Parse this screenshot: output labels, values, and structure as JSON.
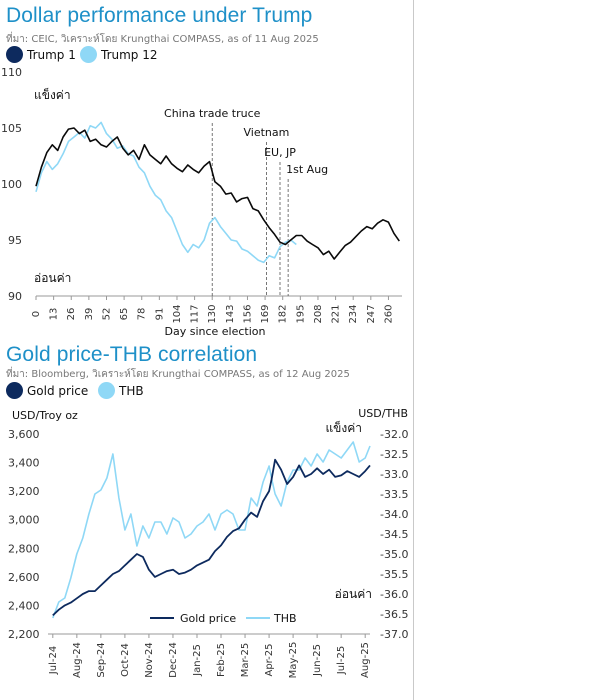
{
  "chart_data": [
    {
      "type": "line",
      "title": "Dollar performance under Trump",
      "source": "ที่มา: CEIC, วิเคราะห์โดย Krungthai COMPASS, as of 11 Aug 2025",
      "xlabel": "Day since election",
      "ylabel": "",
      "xlim": [
        0,
        270
      ],
      "ylim": [
        90,
        110
      ],
      "x_ticks": [
        0,
        13,
        26,
        39,
        52,
        65,
        78,
        91,
        104,
        117,
        130,
        143,
        156,
        169,
        182,
        195,
        208,
        221,
        234,
        247,
        260
      ],
      "y_ticks": [
        90,
        95,
        100,
        105,
        110
      ],
      "annotations": [
        {
          "label": "แข็งค่า",
          "position": "top-left"
        },
        {
          "label": "อ่อนค่า",
          "position": "bottom-left"
        }
      ],
      "events": [
        {
          "label": "China trade truce",
          "x": 130
        },
        {
          "label": "Vietnam",
          "x": 170
        },
        {
          "label": "EU, JP",
          "x": 180
        },
        {
          "label": "1st Aug",
          "x": 186
        }
      ],
      "colors": {
        "trump1": "#0a0a0a",
        "trump12": "#8fd8f6",
        "legend1": "#0d2a5e",
        "legend2": "#8fd8f6"
      },
      "series": [
        {
          "name": "Trump 1",
          "x": [
            0,
            4,
            8,
            12,
            16,
            20,
            24,
            28,
            32,
            36,
            40,
            44,
            48,
            52,
            56,
            60,
            64,
            68,
            72,
            76,
            80,
            84,
            88,
            92,
            96,
            100,
            104,
            108,
            112,
            116,
            120,
            124,
            128,
            132,
            136,
            140,
            144,
            148,
            152,
            156,
            160,
            164,
            168,
            172,
            176,
            180,
            184,
            188,
            192,
            196,
            200,
            204,
            208,
            212,
            216,
            220,
            224,
            228,
            232,
            236,
            240,
            244,
            248,
            252,
            256,
            260,
            264,
            268
          ],
          "values": [
            99.8,
            101.5,
            102.8,
            103.5,
            103.0,
            104.2,
            104.9,
            105.0,
            104.5,
            104.8,
            103.8,
            104.0,
            103.5,
            103.3,
            103.8,
            104.2,
            103.2,
            102.6,
            103.0,
            102.2,
            103.5,
            102.6,
            102.2,
            101.8,
            102.5,
            101.8,
            101.4,
            101.1,
            101.7,
            101.3,
            101.0,
            101.6,
            102.0,
            100.2,
            99.8,
            99.1,
            99.2,
            98.4,
            98.7,
            98.8,
            97.8,
            97.6,
            96.8,
            96.1,
            95.5,
            94.8,
            94.6,
            95.0,
            95.4,
            95.4,
            94.9,
            94.6,
            94.3,
            93.7,
            94.0,
            93.3,
            93.9,
            94.5,
            94.8,
            95.3,
            95.8,
            96.2,
            96.0,
            96.5,
            96.8,
            96.6,
            95.6,
            94.9
          ]
        },
        {
          "name": "Trump 12",
          "x": [
            0,
            4,
            8,
            12,
            16,
            20,
            24,
            28,
            32,
            36,
            40,
            44,
            48,
            52,
            56,
            60,
            64,
            68,
            72,
            76,
            80,
            84,
            88,
            92,
            96,
            100,
            104,
            108,
            112,
            116,
            120,
            124,
            128,
            132,
            136,
            140,
            144,
            148,
            152,
            156,
            160,
            164,
            168,
            172,
            176,
            180,
            184,
            188,
            192
          ],
          "values": [
            99.3,
            101.0,
            102.0,
            101.3,
            101.8,
            102.7,
            103.8,
            104.2,
            104.6,
            104.1,
            105.2,
            105.0,
            105.5,
            104.5,
            104.0,
            103.2,
            103.4,
            102.7,
            102.5,
            101.5,
            101.0,
            99.8,
            99.0,
            98.6,
            97.6,
            97.0,
            95.8,
            94.6,
            93.9,
            94.6,
            94.3,
            95.0,
            96.5,
            97.0,
            96.2,
            95.6,
            95.0,
            94.9,
            94.2,
            94.0,
            93.6,
            93.2,
            93.0,
            93.6,
            93.4,
            94.4,
            94.8,
            95.0,
            94.6
          ]
        }
      ]
    },
    {
      "type": "line",
      "title": "Gold price-THB correlation",
      "source": "ที่มา: Bloomberg, วิเคราะห์โดย Krungthai COMPASS, as of 12 Aug 2025",
      "ylabel_left": "USD/Troy oz",
      "ylabel_right": "USD/THB",
      "x_ticks": [
        "Jul-24",
        "Aug-24",
        "Sep-24",
        "Oct-24",
        "Nov-24",
        "Dec-24",
        "Jan-25",
        "Feb-25",
        "Mar-25",
        "Apr-25",
        "May-25",
        "Jun-25",
        "Jul-25",
        "Aug-25"
      ],
      "ylim_left": [
        2200,
        3600
      ],
      "y_ticks_left": [
        "2,200",
        "2,400",
        "2,600",
        "2,800",
        "3,000",
        "3,200",
        "3,400",
        "3,600"
      ],
      "ylim_right": [
        -37.0,
        -32.0
      ],
      "y_ticks_right": [
        "-32.0",
        "-32.5",
        "-33.0",
        "-33.5",
        "-34.0",
        "-34.5",
        "-35.0",
        "-35.5",
        "-36.0",
        "-36.5",
        "-37.0"
      ],
      "right_axis_inverted": true,
      "annotations": [
        {
          "label": "แข็งค่า",
          "position": "top-right"
        },
        {
          "label": "อ่อนค่า",
          "position": "bottom-right"
        }
      ],
      "legend_labels": [
        "Gold price",
        "THB"
      ],
      "colors": {
        "gold": "#0d2a5e",
        "thb": "#8fd8f6"
      },
      "series": [
        {
          "name": "Gold price",
          "x": [
            0,
            0.25,
            0.5,
            0.75,
            1,
            1.25,
            1.5,
            1.75,
            2,
            2.25,
            2.5,
            2.75,
            3,
            3.25,
            3.5,
            3.75,
            4,
            4.25,
            4.5,
            4.75,
            5,
            5.25,
            5.5,
            5.75,
            6,
            6.25,
            6.5,
            6.75,
            7,
            7.25,
            7.5,
            7.75,
            8,
            8.25,
            8.5,
            8.75,
            9,
            9.1,
            9.25,
            9.5,
            9.75,
            10,
            10.25,
            10.5,
            10.75,
            11,
            11.25,
            11.5,
            11.75,
            12,
            12.25,
            12.5,
            12.75,
            13,
            13.2
          ],
          "values": [
            2330,
            2370,
            2400,
            2420,
            2450,
            2480,
            2500,
            2500,
            2540,
            2580,
            2620,
            2640,
            2680,
            2720,
            2760,
            2740,
            2650,
            2600,
            2620,
            2640,
            2650,
            2620,
            2630,
            2650,
            2680,
            2700,
            2720,
            2780,
            2820,
            2880,
            2920,
            2940,
            3000,
            3050,
            3020,
            3130,
            3200,
            3280,
            3420,
            3350,
            3250,
            3300,
            3380,
            3300,
            3320,
            3360,
            3320,
            3350,
            3300,
            3310,
            3340,
            3320,
            3300,
            3340,
            3380
          ]
        },
        {
          "name": "THB",
          "x": [
            0,
            0.25,
            0.5,
            0.75,
            1,
            1.25,
            1.5,
            1.75,
            2,
            2.25,
            2.5,
            2.75,
            3,
            3.25,
            3.5,
            3.75,
            4,
            4.25,
            4.5,
            4.75,
            5,
            5.25,
            5.5,
            5.75,
            6,
            6.25,
            6.5,
            6.75,
            7,
            7.25,
            7.5,
            7.75,
            8,
            8.25,
            8.5,
            8.75,
            9,
            9.1,
            9.25,
            9.5,
            9.75,
            10,
            10.25,
            10.5,
            10.75,
            11,
            11.25,
            11.5,
            11.75,
            12,
            12.25,
            12.5,
            12.75,
            13,
            13.2
          ],
          "values": [
            -36.6,
            -36.2,
            -36.1,
            -35.6,
            -35.0,
            -34.6,
            -34.0,
            -33.5,
            -33.4,
            -33.1,
            -32.5,
            -33.6,
            -34.4,
            -34.0,
            -34.8,
            -34.3,
            -34.6,
            -34.2,
            -34.2,
            -34.5,
            -34.1,
            -34.2,
            -34.6,
            -34.5,
            -34.3,
            -34.2,
            -34.0,
            -34.4,
            -34.0,
            -33.9,
            -34.0,
            -34.4,
            -34.4,
            -33.6,
            -33.8,
            -33.2,
            -32.8,
            -33.1,
            -33.5,
            -33.8,
            -33.2,
            -32.9,
            -32.9,
            -32.6,
            -32.8,
            -32.5,
            -32.7,
            -32.4,
            -32.5,
            -32.6,
            -32.4,
            -32.2,
            -32.7,
            -32.6,
            -32.3
          ]
        }
      ]
    }
  ]
}
